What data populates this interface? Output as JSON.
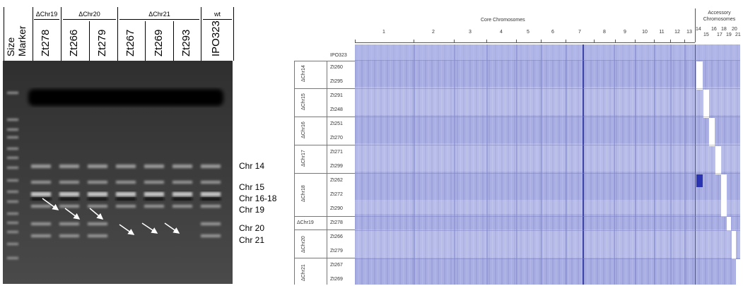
{
  "gel": {
    "size_marker": "Size Marker",
    "groups": [
      "ΔChr19",
      "ΔChr20",
      "ΔChr21",
      "wt"
    ],
    "lanes": [
      "Zt278",
      "Zt266",
      "Zt279",
      "Zt267",
      "Zt269",
      "Zt293",
      "IPO323"
    ],
    "chromosome_labels": [
      "Chr 14",
      "Chr 15",
      "Chr 16-18",
      "Chr 19",
      "Chr 20",
      "Chr 21"
    ]
  },
  "heatmap": {
    "core_title": "Core Chromosomes",
    "accessory_title_1": "Accessory",
    "accessory_title_2": "Chromosomes",
    "core_numbers": [
      "1",
      "2",
      "3",
      "4",
      "5",
      "6",
      "7",
      "8",
      "9",
      "10",
      "11",
      "12",
      "13"
    ],
    "acc_top": [
      "14",
      "16",
      "18",
      "20"
    ],
    "acc_bottom": [
      "15",
      "17",
      "19",
      "21"
    ],
    "ref_label": "IPO323",
    "groups": [
      {
        "name": "ΔChr14",
        "strains": [
          "Zt260",
          "Zt295"
        ]
      },
      {
        "name": "ΔChr15",
        "strains": [
          "Zt291",
          "Zt248"
        ]
      },
      {
        "name": "ΔChr16",
        "strains": [
          "Zt251",
          "Zt270"
        ]
      },
      {
        "name": "ΔChr17",
        "strains": [
          "Zt271",
          "Zt299"
        ]
      },
      {
        "name": "ΔChr18",
        "strains": [
          "Zt262",
          "Zt272",
          "Zt290"
        ]
      },
      {
        "name": "ΔChr19",
        "strains": [
          "Zt278"
        ]
      },
      {
        "name": "ΔChr20",
        "strains": [
          "Zt266",
          "Zt279"
        ]
      },
      {
        "name": "ΔChr21",
        "strains": [
          "Zt267",
          "Zt269"
        ]
      }
    ]
  }
}
